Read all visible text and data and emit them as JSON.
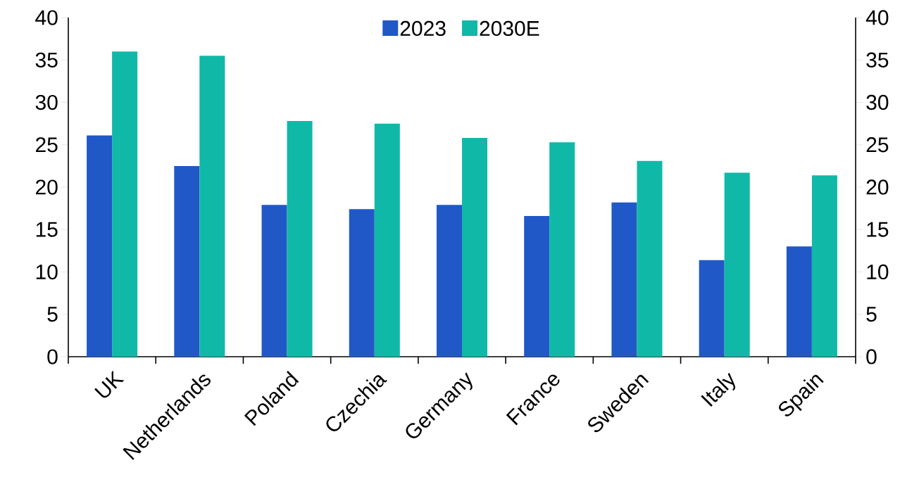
{
  "chart_data": {
    "type": "bar",
    "categories": [
      "UK",
      "Netherlands",
      "Poland",
      "Czechia",
      "Germany",
      "France",
      "Sweden",
      "Italy",
      "Spain"
    ],
    "series": [
      {
        "name": "2023",
        "color": "#2058c8",
        "values": [
          26.1,
          22.5,
          17.9,
          17.4,
          17.9,
          16.6,
          18.2,
          11.4,
          13.0
        ]
      },
      {
        "name": "2030E",
        "color": "#10b8a8",
        "values": [
          36.0,
          35.5,
          27.8,
          27.5,
          25.8,
          25.3,
          23.1,
          21.7,
          21.4
        ]
      }
    ],
    "ylim": [
      0,
      40
    ],
    "yticks": [
      0,
      5,
      10,
      15,
      20,
      25,
      30,
      35,
      40
    ],
    "y2lim": [
      0,
      40
    ],
    "y2ticks": [
      0,
      5,
      10,
      15,
      20,
      25,
      30,
      35,
      40
    ],
    "legend": "top"
  }
}
